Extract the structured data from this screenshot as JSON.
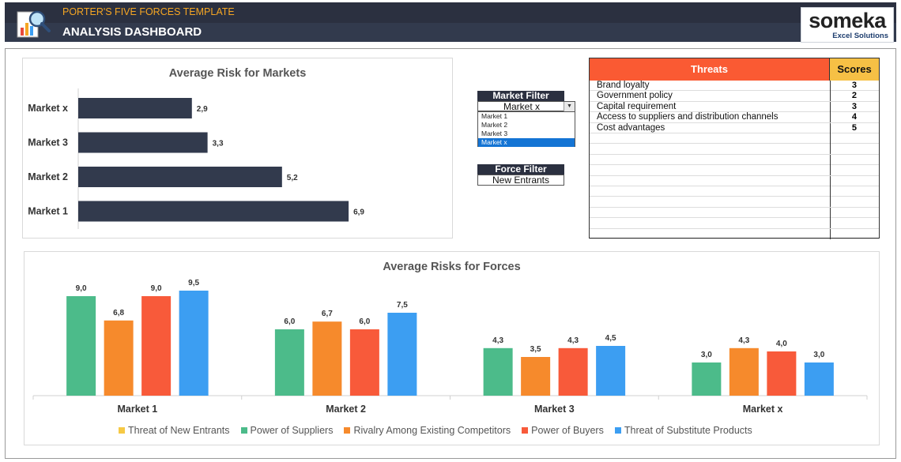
{
  "header": {
    "subtitle": "PORTER'S FIVE FORCES TEMPLATE",
    "title": "ANALYSIS DASHBOARD",
    "logo_main": "someka",
    "logo_sub": "Excel Solutions"
  },
  "colors": {
    "header_bg": "#2b3040",
    "accent_orange": "#f6a623",
    "threat_header": "#fa5a33",
    "score_header": "#f6c045",
    "bar_markets": "#323a4d",
    "threat_of_new_entrants": "#f6c945",
    "power_of_suppliers": "#4cbb8a",
    "rivalry": "#f68a2c",
    "power_of_buyers": "#f85a3a",
    "threat_of_substitutes": "#3c9ef2"
  },
  "filters": {
    "market_label": "Market Filter",
    "market_value": "Market x",
    "market_options": [
      "Market 1",
      "Market 2",
      "Market 3",
      "Market x"
    ],
    "market_selected_index": 3,
    "force_label": "Force Filter",
    "force_value": "New Entrants"
  },
  "threats_table": {
    "header_threats": "Threats",
    "header_scores": "Scores",
    "rows": [
      {
        "threat": "Brand loyalty",
        "score": "3"
      },
      {
        "threat": "Government policy",
        "score": "2"
      },
      {
        "threat": "Capital requirement",
        "score": "3"
      },
      {
        "threat": "Access to suppliers and distribution channels",
        "score": "4"
      },
      {
        "threat": "Cost advantages",
        "score": "5"
      },
      {
        "threat": "",
        "score": ""
      },
      {
        "threat": "",
        "score": ""
      },
      {
        "threat": "",
        "score": ""
      },
      {
        "threat": "",
        "score": ""
      },
      {
        "threat": "",
        "score": ""
      },
      {
        "threat": "",
        "score": ""
      },
      {
        "threat": "",
        "score": ""
      },
      {
        "threat": "",
        "score": ""
      },
      {
        "threat": "",
        "score": ""
      },
      {
        "threat": "",
        "score": ""
      }
    ]
  },
  "chart_data": [
    {
      "type": "bar",
      "orientation": "horizontal",
      "title": "Average Risk for Markets",
      "categories": [
        "Market x",
        "Market 3",
        "Market 2",
        "Market 1"
      ],
      "values": [
        2.9,
        3.3,
        5.2,
        6.9
      ],
      "value_labels": [
        "2,9",
        "3,3",
        "5,2",
        "6,9"
      ],
      "xlim": [
        0,
        9.5
      ],
      "grid": false
    },
    {
      "type": "bar",
      "title": "Average Risks for Forces",
      "categories": [
        "Market 1",
        "Market 2",
        "Market 3",
        "Market x"
      ],
      "ylim": [
        0,
        10.5
      ],
      "legend_position": "bottom",
      "series": [
        {
          "name": "Threat of New Entrants",
          "values": [
            null,
            null,
            null,
            null
          ],
          "labels": [
            "",
            "",
            "",
            ""
          ]
        },
        {
          "name": "Power of Suppliers",
          "values": [
            9.0,
            6.0,
            4.3,
            3.0
          ],
          "labels": [
            "9,0",
            "6,0",
            "4,3",
            "3,0"
          ]
        },
        {
          "name": "Rivalry Among Existing Competitors",
          "values": [
            6.8,
            6.7,
            3.5,
            4.3
          ],
          "labels": [
            "6,8",
            "6,7",
            "3,5",
            "4,3"
          ]
        },
        {
          "name": "Power of Buyers",
          "values": [
            9.0,
            6.0,
            4.3,
            4.0
          ],
          "labels": [
            "9,0",
            "6,0",
            "4,3",
            "4,0"
          ]
        },
        {
          "name": "Threat of Substitute Products",
          "values": [
            9.5,
            7.5,
            4.5,
            3.0
          ],
          "labels": [
            "9,5",
            "7,5",
            "4,5",
            "3,0"
          ]
        }
      ]
    }
  ]
}
